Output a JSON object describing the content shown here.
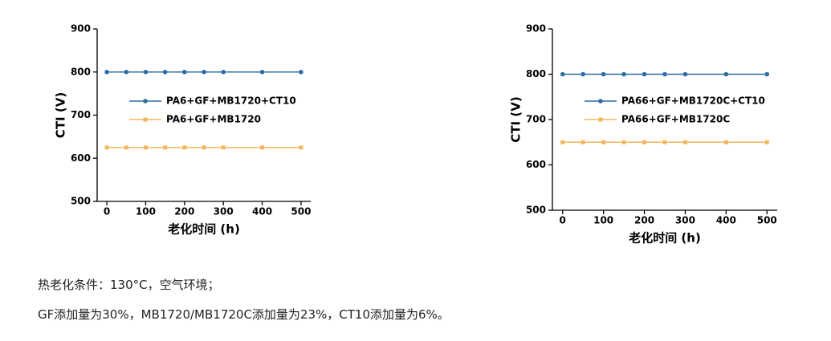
{
  "chart_data": [
    {
      "type": "line",
      "xlabel": "老化时间 (h)",
      "ylabel": "CTI (V)",
      "x": [
        0,
        50,
        100,
        150,
        200,
        250,
        300,
        400,
        500
      ],
      "xlim": [
        -25,
        525
      ],
      "xticks": [
        0,
        100,
        200,
        300,
        400,
        500
      ],
      "ylim": [
        500,
        900
      ],
      "yticks": [
        500,
        600,
        700,
        800,
        900
      ],
      "legend": "center",
      "series": [
        {
          "name": "PA6+GF+MB1720+CT10",
          "color": "#2e6ca4",
          "marker": "circle",
          "values": [
            800,
            800,
            800,
            800,
            800,
            800,
            800,
            800,
            800
          ]
        },
        {
          "name": "PA6+GF+MB1720",
          "color": "#f2b75b",
          "marker": "square",
          "values": [
            625,
            625,
            625,
            625,
            625,
            625,
            625,
            625,
            625
          ]
        }
      ]
    },
    {
      "type": "line",
      "xlabel": "老化时间 (h)",
      "ylabel": "CTI (V)",
      "x": [
        0,
        50,
        100,
        150,
        200,
        250,
        300,
        400,
        500
      ],
      "xlim": [
        -25,
        525
      ],
      "xticks": [
        0,
        100,
        200,
        300,
        400,
        500
      ],
      "ylim": [
        500,
        900
      ],
      "yticks": [
        500,
        600,
        700,
        800,
        900
      ],
      "legend": "center",
      "series": [
        {
          "name": "PA66+GF+MB1720C+CT10",
          "color": "#2e6ca4",
          "marker": "circle",
          "values": [
            800,
            800,
            800,
            800,
            800,
            800,
            800,
            800,
            800
          ]
        },
        {
          "name": "PA66+GF+MB1720C",
          "color": "#f2b75b",
          "marker": "square",
          "values": [
            650,
            650,
            650,
            650,
            650,
            650,
            650,
            650,
            650
          ]
        }
      ]
    }
  ],
  "notes": [
    "热老化条件：130°C，空气环境；",
    "GF添加量为30%，MB1720/MB1720C添加量为23%，CT10添加量为6%。"
  ]
}
